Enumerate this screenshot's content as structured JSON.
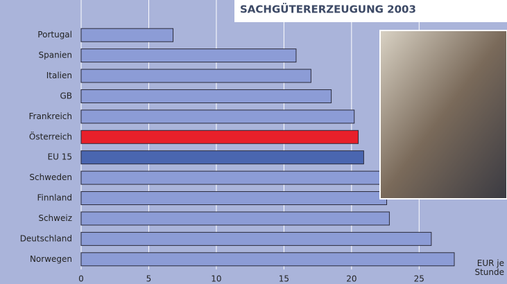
{
  "chart_data": {
    "type": "bar",
    "orientation": "horizontal",
    "title": "SACHGÜTERERZEUGUNG 2003",
    "x_label": "EUR je Stunde",
    "categories": [
      "Portugal",
      "Spanien",
      "Italien",
      "GB",
      "Frankreich",
      "Österreich",
      "EU 15",
      "Schweden",
      "Finnland",
      "Schweiz",
      "Deutschland",
      "Norwegen"
    ],
    "values": [
      6.8,
      15.9,
      17.0,
      18.5,
      20.2,
      20.5,
      20.9,
      22.1,
      22.6,
      22.8,
      25.9,
      27.6
    ],
    "colors": [
      "#8c9cd6",
      "#8c9cd6",
      "#8c9cd6",
      "#8c9cd6",
      "#8c9cd6",
      "#e8202a",
      "#4a66b0",
      "#8c9cd6",
      "#8c9cd6",
      "#8c9cd6",
      "#8c9cd6",
      "#8c9cd6"
    ],
    "xlim": [
      0,
      31.5
    ],
    "xticks": [
      0,
      5,
      10,
      15,
      20,
      25
    ],
    "grid": true
  }
}
